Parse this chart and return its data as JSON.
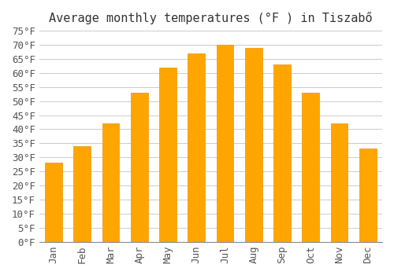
{
  "title": "Average monthly temperatures (°F ) in Tiszabő",
  "months": [
    "Jan",
    "Feb",
    "Mar",
    "Apr",
    "May",
    "Jun",
    "Jul",
    "Aug",
    "Sep",
    "Oct",
    "Nov",
    "Dec"
  ],
  "values": [
    28,
    34,
    42,
    53,
    62,
    67,
    70,
    69,
    63,
    53,
    42,
    33
  ],
  "bar_color": "#FFA500",
  "bar_edge_color": "#FFA500",
  "background_color": "#FFFFFF",
  "grid_color": "#CCCCCC",
  "ylim": [
    0,
    75
  ],
  "yticks": [
    0,
    5,
    10,
    15,
    20,
    25,
    30,
    35,
    40,
    45,
    50,
    55,
    60,
    65,
    70,
    75
  ],
  "title_fontsize": 11,
  "tick_fontsize": 9,
  "figsize": [
    5.0,
    3.5
  ],
  "dpi": 100
}
